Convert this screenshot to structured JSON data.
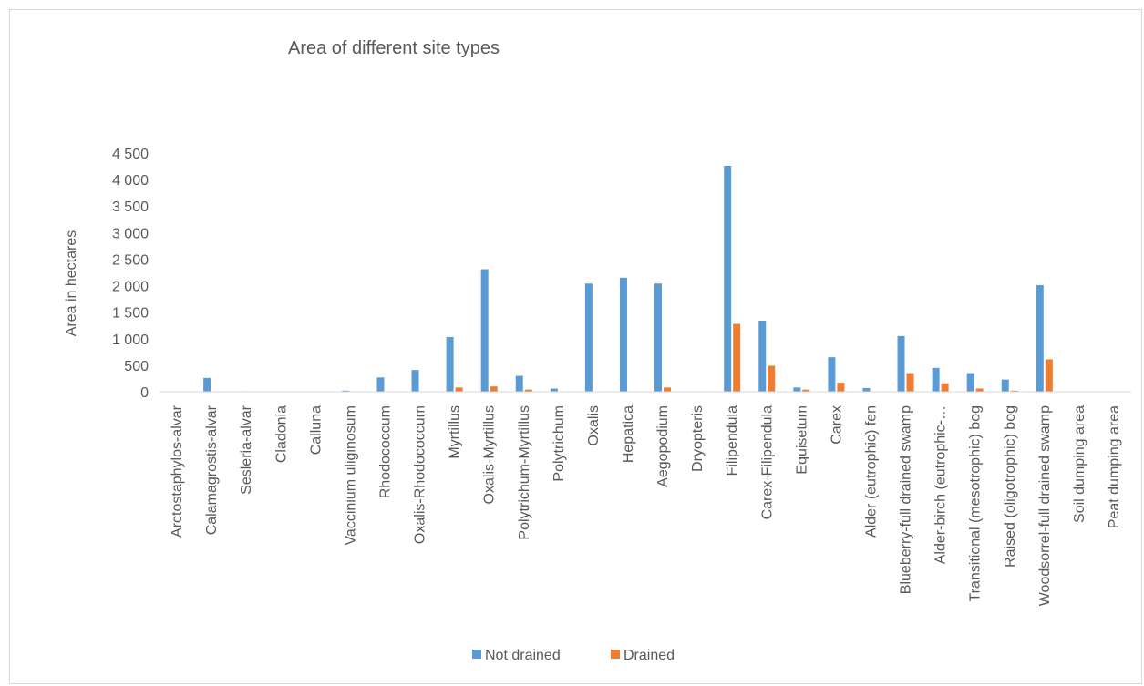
{
  "chart_data": {
    "type": "bar",
    "title": "Area of different site types",
    "xlabel": "",
    "ylabel": "Area in hectares",
    "ylim": [
      0,
      4500
    ],
    "yticks": [
      0,
      500,
      1000,
      1500,
      2000,
      2500,
      3000,
      3500,
      4000,
      4500
    ],
    "ytick_labels": [
      "0",
      "500",
      "1 000",
      "1 500",
      "2 000",
      "2 500",
      "3 000",
      "3 500",
      "4 000",
      "4 500"
    ],
    "grid": false,
    "legend_position": "bottom",
    "categories": [
      "Arctostaphylos-alvar",
      "Calamagrostis-alvar",
      "Sesleria-alvar",
      "Cladonia",
      "Calluna",
      "Vaccinium uliginosum",
      "Rhodococcum",
      "Oxalis-Rhodococcum",
      "Myrtillus",
      "Oxalis-Myrtillus",
      "Polytrichum-Myrtillus",
      "Polytrichum",
      "Oxalis",
      "Hepatica",
      "Aegopodium",
      "Dryopteris",
      "Filipendula",
      "Carex-Filipendula",
      "Equisetum",
      "Carex",
      "Alder (eutrophic) fen",
      "Blueberry-full drained swamp",
      "Alder-birch (eutrophic-…",
      "Transitional (mesotrophic) bog",
      "Raised (oligotrophic) bog",
      "Woodsorrel-full drained swamp",
      "Soil dumping area",
      "Peat dumping area"
    ],
    "series": [
      {
        "name": "Not drained",
        "color": "#5b9bd5",
        "values": [
          5,
          260,
          10,
          0,
          0,
          20,
          270,
          410,
          1030,
          2310,
          300,
          60,
          2040,
          2150,
          2040,
          0,
          4260,
          1340,
          80,
          650,
          70,
          1050,
          450,
          350,
          230,
          2010,
          0,
          0
        ]
      },
      {
        "name": "Drained",
        "color": "#ed7d31",
        "values": [
          0,
          0,
          0,
          0,
          0,
          0,
          0,
          0,
          80,
          100,
          40,
          0,
          0,
          0,
          80,
          0,
          1280,
          490,
          40,
          170,
          0,
          350,
          160,
          60,
          20,
          610,
          0,
          0
        ]
      }
    ]
  }
}
